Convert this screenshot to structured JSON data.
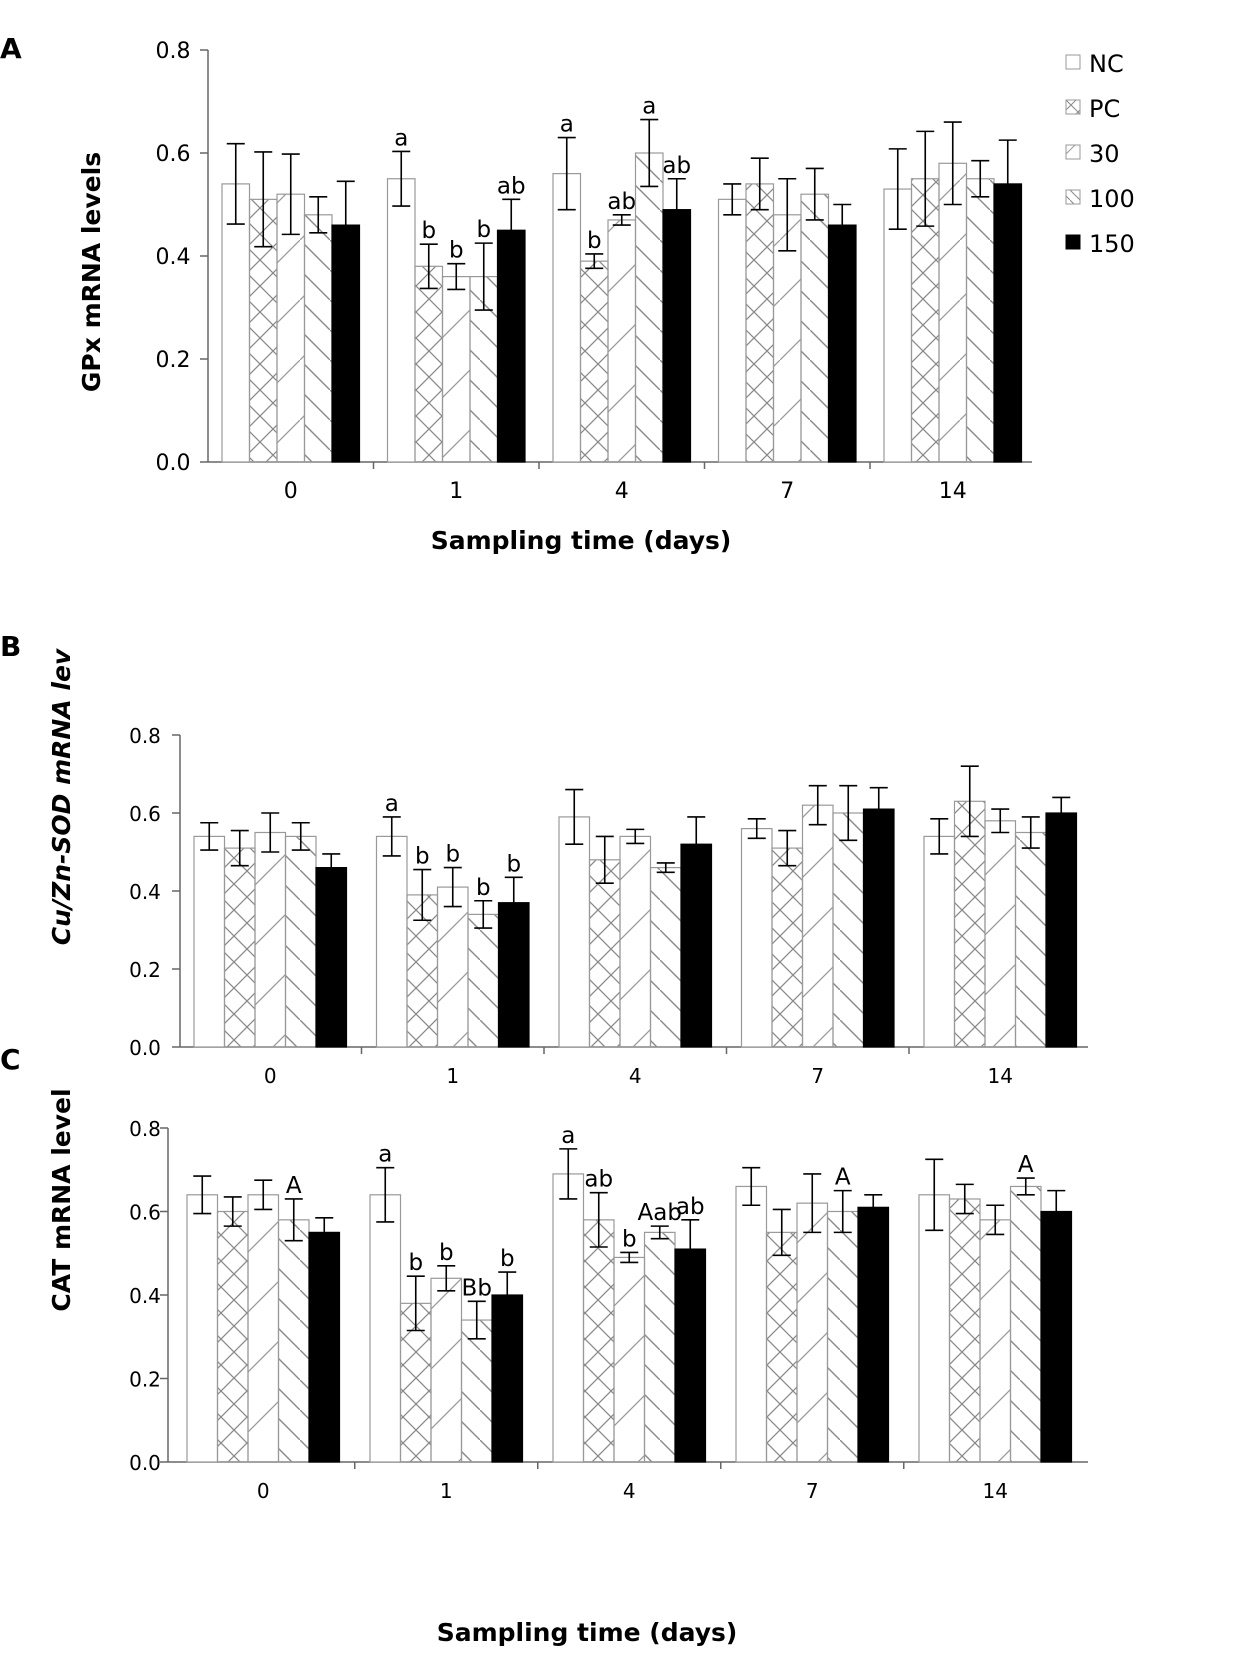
{
  "legend": [
    {
      "name": "NC",
      "fill": "white"
    },
    {
      "name": "PC",
      "fill": "crosshatch"
    },
    {
      "name": "30",
      "fill": "diag-up"
    },
    {
      "name": "100",
      "fill": "diag-down"
    },
    {
      "name": "150",
      "fill": "black"
    }
  ],
  "colors": {
    "bar_stroke": "#888888",
    "solid": "#000000",
    "axis": "#666666"
  },
  "chart_data": [
    {
      "type": "bar",
      "panel": "A",
      "ylabel": "GPx mRNA levels",
      "ylabel_italic": false,
      "xlabel": "Sampling time (days)",
      "categories": [
        "0",
        "1",
        "4",
        "7",
        "14"
      ],
      "ylim": [
        0,
        0.8
      ],
      "yticks": [
        "0.0",
        "0.2",
        "0.4",
        "0.6",
        "0.8"
      ],
      "series": [
        {
          "name": "NC",
          "values": [
            0.54,
            0.55,
            0.56,
            0.51,
            0.53
          ],
          "err": [
            0.078,
            0.053,
            0.07,
            0.03,
            0.078
          ],
          "labels": [
            "",
            "a",
            "a",
            "",
            ""
          ]
        },
        {
          "name": "PC",
          "values": [
            0.51,
            0.38,
            0.39,
            0.54,
            0.55
          ],
          "err": [
            0.092,
            0.043,
            0.014,
            0.05,
            0.092
          ],
          "labels": [
            "",
            "b",
            "b",
            "",
            ""
          ]
        },
        {
          "name": "30",
          "values": [
            0.52,
            0.36,
            0.47,
            0.48,
            0.58
          ],
          "err": [
            0.078,
            0.025,
            0.01,
            0.07,
            0.08
          ],
          "labels": [
            "",
            "b",
            "ab",
            "",
            ""
          ]
        },
        {
          "name": "100",
          "values": [
            0.48,
            0.36,
            0.6,
            0.52,
            0.55
          ],
          "err": [
            0.035,
            0.065,
            0.065,
            0.05,
            0.035
          ],
          "labels": [
            "",
            "b",
            "a",
            "",
            ""
          ]
        },
        {
          "name": "150",
          "values": [
            0.46,
            0.45,
            0.49,
            0.46,
            0.54
          ],
          "err": [
            0.085,
            0.06,
            0.06,
            0.04,
            0.085
          ],
          "labels": [
            "",
            "ab",
            "ab",
            "",
            ""
          ]
        }
      ]
    },
    {
      "type": "bar",
      "panel": "B",
      "ylabel": "Cu/Zn-SOD  mRNA lev",
      "ylabel_italic": true,
      "xlabel": "",
      "categories": [
        "0",
        "1",
        "4",
        "7",
        "14"
      ],
      "ylim": [
        0,
        0.8
      ],
      "yticks": [
        "0.0",
        "0.2",
        "0.4",
        "0.6",
        "0.8"
      ],
      "series": [
        {
          "name": "NC",
          "values": [
            0.54,
            0.54,
            0.59,
            0.56,
            0.54
          ],
          "err": [
            0.035,
            0.05,
            0.07,
            0.025,
            0.045
          ],
          "labels": [
            "",
            "a",
            "",
            "",
            ""
          ]
        },
        {
          "name": "PC",
          "values": [
            0.51,
            0.39,
            0.48,
            0.51,
            0.63
          ],
          "err": [
            0.045,
            0.065,
            0.06,
            0.045,
            0.09
          ],
          "labels": [
            "",
            "b",
            "",
            "",
            ""
          ]
        },
        {
          "name": "30",
          "values": [
            0.55,
            0.41,
            0.54,
            0.62,
            0.58
          ],
          "err": [
            0.05,
            0.05,
            0.018,
            0.05,
            0.03
          ],
          "labels": [
            "",
            "b",
            "",
            "",
            ""
          ]
        },
        {
          "name": "100",
          "values": [
            0.54,
            0.34,
            0.46,
            0.6,
            0.55
          ],
          "err": [
            0.035,
            0.035,
            0.012,
            0.07,
            0.04
          ],
          "labels": [
            "",
            "b",
            "",
            "",
            ""
          ]
        },
        {
          "name": "150",
          "values": [
            0.46,
            0.37,
            0.52,
            0.61,
            0.6
          ],
          "err": [
            0.035,
            0.065,
            0.07,
            0.055,
            0.04
          ],
          "labels": [
            "",
            "b",
            "",
            "",
            ""
          ]
        }
      ]
    },
    {
      "type": "bar",
      "panel": "C",
      "ylabel": "CAT  mRNA  level",
      "ylabel_italic": false,
      "xlabel": "Sampling time (days)",
      "categories": [
        "0",
        "1",
        "4",
        "7",
        "14"
      ],
      "ylim": [
        0,
        0.8
      ],
      "yticks": [
        "0.0",
        "0.2",
        "0.4",
        "0.6",
        "0.8"
      ],
      "series": [
        {
          "name": "NC",
          "values": [
            0.64,
            0.64,
            0.69,
            0.66,
            0.64
          ],
          "err": [
            0.045,
            0.065,
            0.06,
            0.045,
            0.085
          ],
          "labels": [
            "",
            "a",
            "a",
            "",
            ""
          ]
        },
        {
          "name": "PC",
          "values": [
            0.6,
            0.38,
            0.58,
            0.55,
            0.63
          ],
          "err": [
            0.035,
            0.065,
            0.065,
            0.055,
            0.035
          ],
          "labels": [
            "",
            "b",
            "ab",
            "",
            ""
          ]
        },
        {
          "name": "30",
          "values": [
            0.64,
            0.44,
            0.49,
            0.62,
            0.58
          ],
          "err": [
            0.035,
            0.03,
            0.012,
            0.07,
            0.035
          ],
          "labels": [
            "",
            "b",
            "b",
            "",
            ""
          ]
        },
        {
          "name": "100",
          "values": [
            0.58,
            0.34,
            0.55,
            0.6,
            0.66
          ],
          "err": [
            0.05,
            0.045,
            0.015,
            0.05,
            0.02
          ],
          "labels": [
            "A",
            "Bb",
            "Aab",
            "A",
            "A"
          ]
        },
        {
          "name": "150",
          "values": [
            0.55,
            0.4,
            0.51,
            0.61,
            0.6
          ],
          "err": [
            0.035,
            0.055,
            0.07,
            0.03,
            0.05
          ],
          "labels": [
            "",
            "b",
            "ab",
            "",
            ""
          ]
        }
      ]
    }
  ]
}
